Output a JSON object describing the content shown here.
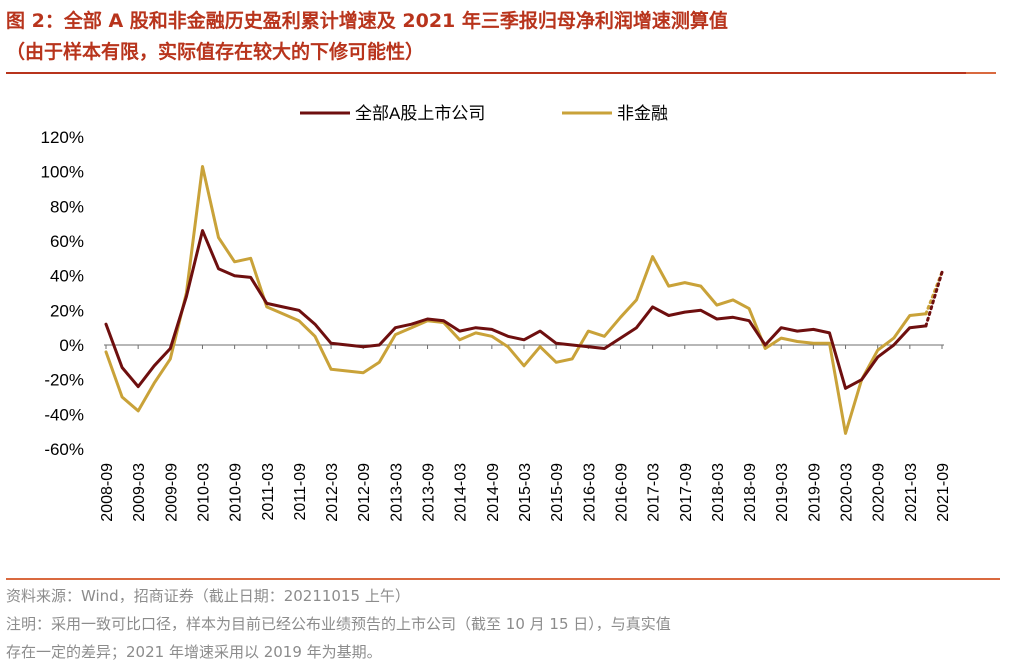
{
  "header": {
    "title_line1": "图 2：全部 A 股和非金融历史盈利累计增速及 2021 年三季报归母净利润增速测算值",
    "title_line2": "（由于样本有限，实际值存在较大的下修可能性）"
  },
  "footer": {
    "source": "资料来源：Wind，招商证券（截止日期：20211015 上午）",
    "note_line1": "注明：采用一致可比口径，样本为目前已经公布业绩预告的上市公司（截至 10 月 15 日），与真实值",
    "note_line2": "存在一定的差异；2021 年增速采用以 2019 年为基期。"
  },
  "chart_data": {
    "type": "line",
    "ylim": [
      -0.6,
      1.2
    ],
    "y_ticks": [
      -0.6,
      -0.4,
      -0.2,
      0,
      0.2,
      0.4,
      0.6,
      0.8,
      1.0,
      1.2
    ],
    "y_tick_labels": [
      "-60%",
      "-40%",
      "-20%",
      "0%",
      "20%",
      "40%",
      "60%",
      "80%",
      "100%",
      "120%"
    ],
    "x_tick_labels": [
      "2008-09",
      "2009-03",
      "2009-09",
      "2010-03",
      "2010-09",
      "2011-03",
      "2011-09",
      "2012-03",
      "2012-09",
      "2013-03",
      "2013-09",
      "2014-03",
      "2014-09",
      "2015-03",
      "2015-09",
      "2016-03",
      "2016-09",
      "2017-03",
      "2017-09",
      "2018-03",
      "2018-09",
      "2019-03",
      "2019-09",
      "2020-03",
      "2020-09",
      "2021-03",
      "2021-09"
    ],
    "x": [
      "2008-09",
      "2008-12",
      "2009-03",
      "2009-06",
      "2009-09",
      "2009-12",
      "2010-03",
      "2010-06",
      "2010-09",
      "2010-12",
      "2011-03",
      "2011-06",
      "2011-09",
      "2011-12",
      "2012-03",
      "2012-06",
      "2012-09",
      "2012-12",
      "2013-03",
      "2013-06",
      "2013-09",
      "2013-12",
      "2014-03",
      "2014-06",
      "2014-09",
      "2014-12",
      "2015-03",
      "2015-06",
      "2015-09",
      "2015-12",
      "2016-03",
      "2016-06",
      "2016-09",
      "2016-12",
      "2017-03",
      "2017-06",
      "2017-09",
      "2017-12",
      "2018-03",
      "2018-06",
      "2018-09",
      "2018-12",
      "2019-03",
      "2019-06",
      "2019-09",
      "2019-12",
      "2020-03",
      "2020-06",
      "2020-09",
      "2020-12",
      "2021-03",
      "2021-06",
      "2021-09"
    ],
    "series": [
      {
        "name": "全部A股上市公司",
        "color": "#6e0f0f",
        "values": [
          0.12,
          -0.13,
          -0.24,
          -0.12,
          -0.02,
          0.28,
          0.66,
          0.44,
          0.4,
          0.39,
          0.24,
          0.22,
          0.2,
          0.12,
          0.01,
          0.0,
          -0.01,
          0.0,
          0.1,
          0.12,
          0.15,
          0.14,
          0.08,
          0.1,
          0.09,
          0.05,
          0.03,
          0.08,
          0.01,
          0.0,
          -0.01,
          -0.02,
          0.04,
          0.1,
          0.22,
          0.17,
          0.19,
          0.2,
          0.15,
          0.16,
          0.14,
          0.0,
          0.1,
          0.08,
          0.09,
          0.07,
          -0.25,
          -0.2,
          -0.07,
          0.0,
          0.1,
          0.11,
          0.42
        ],
        "projected_from": "2021-06"
      },
      {
        "name": "非金融",
        "color": "#c9a239",
        "values": [
          -0.04,
          -0.3,
          -0.38,
          -0.22,
          -0.08,
          0.3,
          1.03,
          0.62,
          0.48,
          0.5,
          0.22,
          0.18,
          0.14,
          0.05,
          -0.14,
          -0.15,
          -0.16,
          -0.1,
          0.06,
          0.1,
          0.14,
          0.13,
          0.03,
          0.07,
          0.05,
          -0.01,
          -0.12,
          -0.01,
          -0.1,
          -0.08,
          0.08,
          0.05,
          0.16,
          0.26,
          0.51,
          0.34,
          0.36,
          0.34,
          0.23,
          0.26,
          0.21,
          -0.02,
          0.04,
          0.02,
          0.01,
          0.01,
          -0.51,
          -0.2,
          -0.03,
          0.04,
          0.17,
          0.18,
          0.42
        ],
        "projected_from": "2021-06"
      }
    ]
  }
}
